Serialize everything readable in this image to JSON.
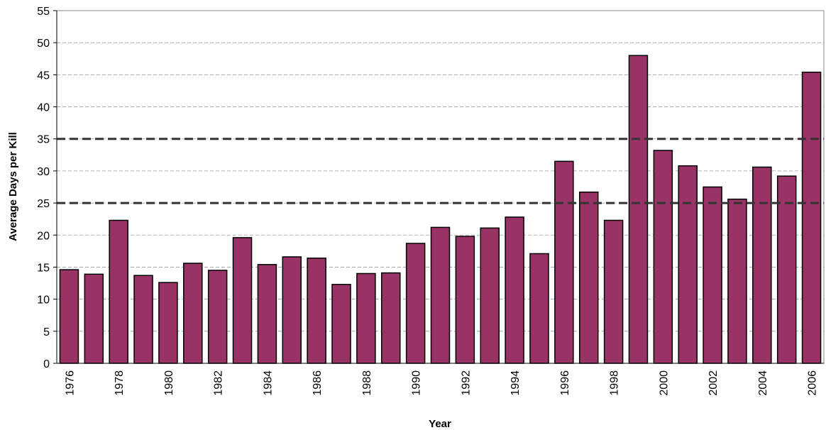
{
  "chart_data": {
    "type": "bar",
    "x_label": "Year",
    "y_label": "Average Days per Kill",
    "categories": [
      "1976",
      null,
      "1978",
      null,
      "1980",
      null,
      "1982",
      null,
      "1984",
      null,
      "1986",
      null,
      "1988",
      null,
      "1990",
      null,
      "1992",
      null,
      "1994",
      null,
      "1996",
      null,
      "1998",
      null,
      "2000",
      null,
      "2002",
      null,
      "2004",
      null,
      "2006"
    ],
    "values": [
      14.6,
      13.9,
      22.3,
      13.7,
      12.6,
      15.6,
      14.5,
      19.6,
      15.4,
      16.6,
      16.4,
      12.3,
      14.0,
      14.1,
      18.7,
      21.2,
      19.8,
      21.1,
      22.8,
      17.1,
      31.5,
      26.7,
      22.3,
      48.0,
      33.2,
      30.8,
      27.5,
      25.6,
      30.6,
      29.2,
      45.4
    ],
    "color": "#993366",
    "ylim": [
      0,
      55
    ],
    "yticks": [
      0,
      5,
      10,
      15,
      20,
      25,
      30,
      35,
      40,
      45,
      50,
      55
    ],
    "grid": true,
    "reference_lines": [
      25,
      35
    ]
  }
}
